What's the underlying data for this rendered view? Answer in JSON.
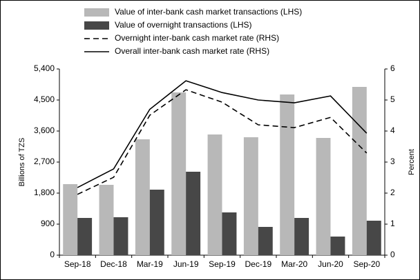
{
  "chart_data": {
    "type": "bar",
    "categories": [
      "Sep-18",
      "Dec-18",
      "Mar-19",
      "Jun-19",
      "Sep-19",
      "Dec-19",
      "Mar-20",
      "Jun-20",
      "Sep-20"
    ],
    "series": [
      {
        "name": "Value of inter-bank cash market transactions (LHS)",
        "type": "bar",
        "color": "#b8b8b8",
        "values": [
          2060,
          2040,
          3360,
          4720,
          3500,
          3420,
          4660,
          3400,
          4880
        ]
      },
      {
        "name": "Value of overnight transactions (LHS)",
        "type": "bar",
        "color": "#474747",
        "values": [
          1080,
          1100,
          1900,
          2420,
          1240,
          820,
          1080,
          540,
          1000
        ]
      },
      {
        "name": "Overnight inter-bank cash market rate (RHS)",
        "type": "line",
        "dash": true,
        "axis": "y2",
        "color": "#000000",
        "values": [
          1.96,
          2.51,
          4.51,
          5.33,
          4.93,
          4.2,
          4.11,
          4.44,
          3.29
        ]
      },
      {
        "name": "Overall inter-bank cash market rate (RHS)",
        "type": "line",
        "dash": false,
        "axis": "y2",
        "color": "#000000",
        "values": [
          2.18,
          2.78,
          4.7,
          5.62,
          5.24,
          5.0,
          4.91,
          5.13,
          3.93
        ]
      }
    ],
    "ylabel": "Billions of TZS",
    "y2label": "Percent",
    "ylim": [
      0,
      5400
    ],
    "yticks": [
      0,
      900,
      {
        "value": 1800,
        "label": "1,800"
      },
      {
        "value": 2700,
        "label": "2,700"
      },
      {
        "value": 3600,
        "label": "3,600"
      },
      {
        "value": 4500,
        "label": "4,500"
      },
      {
        "value": 5400,
        "label": "5,400"
      }
    ],
    "y2lim": [
      0,
      6
    ],
    "y2ticks": [
      0,
      1,
      2,
      3,
      4,
      5,
      6
    ],
    "grid": false,
    "legend": "top"
  }
}
